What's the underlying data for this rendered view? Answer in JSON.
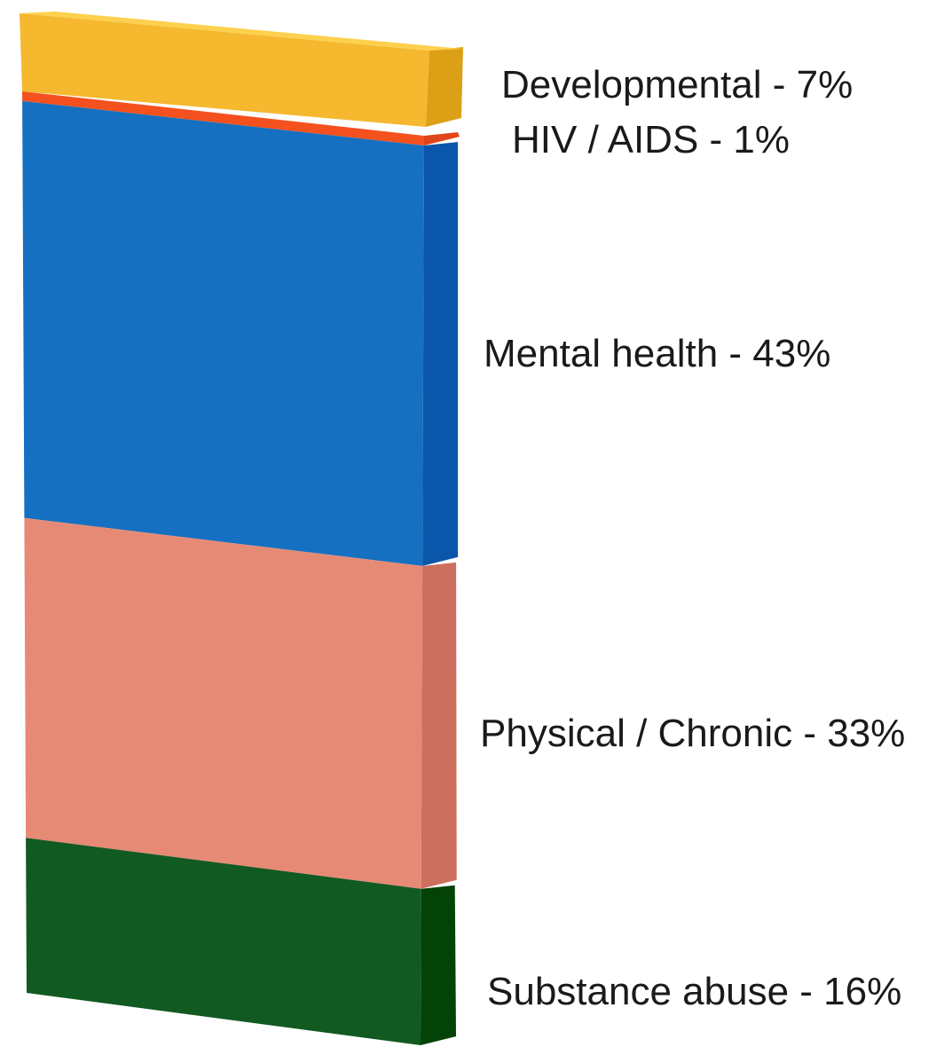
{
  "chart_data": {
    "type": "bar",
    "style": "3d-stacked-single-column",
    "title": "",
    "xlabel": "",
    "ylabel": "",
    "grid": false,
    "legend": "none",
    "unit": "%",
    "segments_top_to_bottom": [
      {
        "name": "Developmental",
        "value": 7,
        "label": "Developmental - 7%",
        "color_front": "#f5b82e",
        "color_side": "#dca017",
        "color_top": "#fdd04e"
      },
      {
        "name": "HIV / AIDS",
        "value": 1,
        "label": "HIV / AIDS - 1%",
        "color_front": "#f4511e",
        "color_side": "#e0461a"
      },
      {
        "name": "Mental health",
        "value": 43,
        "label": "Mental health - 43%",
        "color_front": "#1570c1",
        "color_side": "#0a56ab"
      },
      {
        "name": "Physical / Chronic",
        "value": 33,
        "label": "Physical / Chronic - 33%",
        "color_front": "#e68a76",
        "color_side": "#cc6f5e"
      },
      {
        "name": "Substance abuse",
        "value": 16,
        "label": "Substance abuse - 16%",
        "color_front": "#115a22",
        "color_side": "#034308"
      }
    ]
  }
}
